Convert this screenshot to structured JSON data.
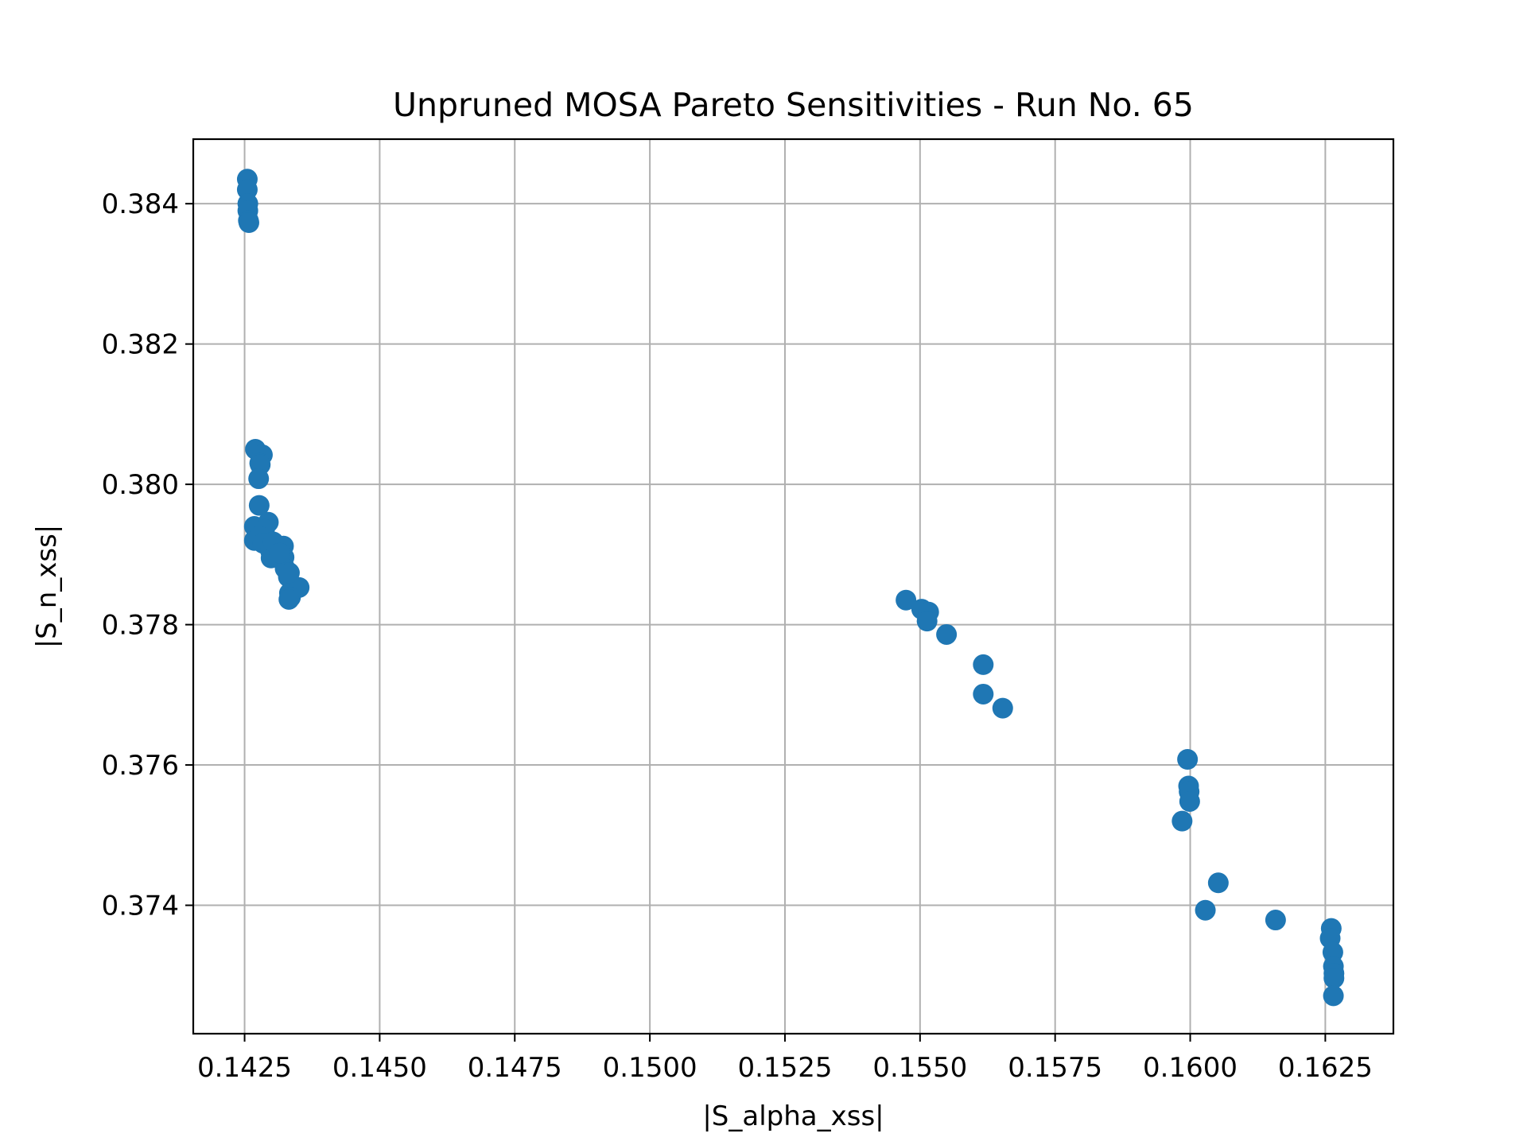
{
  "chart_data": {
    "type": "scatter",
    "title": "Unpruned MOSA Pareto Sensitivities - Run No. 65",
    "xlabel": "|S_alpha_xss|",
    "ylabel": "|S_n_xss|",
    "xlim": [
      0.14155,
      0.16376
    ],
    "ylim": [
      0.37217,
      0.38492
    ],
    "xticks": [
      0.1425,
      0.145,
      0.1475,
      0.15,
      0.1525,
      0.155,
      0.1575,
      0.16,
      0.1625
    ],
    "xtick_labels": [
      "0.1425",
      "0.1450",
      "0.1475",
      "0.1500",
      "0.1525",
      "0.1550",
      "0.1575",
      "0.1600",
      "0.1625"
    ],
    "yticks": [
      0.374,
      0.376,
      0.378,
      0.38,
      0.382,
      0.384
    ],
    "ytick_labels": [
      "0.374",
      "0.376",
      "0.378",
      "0.380",
      "0.382",
      "0.384"
    ],
    "grid": true,
    "marker_color": "#1f77b4",
    "series": [
      {
        "x": [
          0.14255,
          0.14255,
          0.14256,
          0.14256,
          0.14257,
          0.14258,
          0.1427,
          0.14283,
          0.14278,
          0.14279,
          0.14276,
          0.14277,
          0.14268,
          0.14268,
          0.14294,
          0.14287,
          0.14277,
          0.14284,
          0.14298,
          0.14299,
          0.14303,
          0.14322,
          0.14323,
          0.14325,
          0.14331,
          0.14333,
          0.14351,
          0.14335,
          0.14332,
          0.14333,
          0.14315,
          0.15474,
          0.15503,
          0.15516,
          0.15513,
          0.15549,
          0.15617,
          0.15617,
          0.15653,
          0.15995,
          0.15997,
          0.15998,
          0.15999,
          0.15985,
          0.16052,
          0.16028,
          0.16158,
          0.16261,
          0.16259,
          0.16264,
          0.16265,
          0.16266,
          0.16266,
          0.16265
        ],
        "y": [
          0.38435,
          0.3842,
          0.384,
          0.3839,
          0.38376,
          0.38373,
          0.3805,
          0.38042,
          0.3803,
          0.38028,
          0.38008,
          0.3797,
          0.3794,
          0.3792,
          0.37946,
          0.37936,
          0.37926,
          0.37916,
          0.37905,
          0.37895,
          0.37918,
          0.37912,
          0.37896,
          0.3788,
          0.37868,
          0.37845,
          0.37853,
          0.37839,
          0.37836,
          0.37874,
          0.37902,
          0.37835,
          0.37822,
          0.37818,
          0.37805,
          0.37786,
          0.37743,
          0.37701,
          0.37681,
          0.37608,
          0.3757,
          0.37562,
          0.37548,
          0.3752,
          0.37432,
          0.37393,
          0.37379,
          0.37367,
          0.37353,
          0.37333,
          0.37313,
          0.37303,
          0.37296,
          0.37271
        ]
      }
    ]
  }
}
